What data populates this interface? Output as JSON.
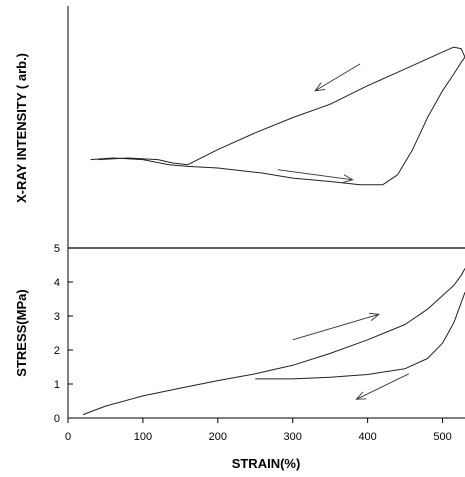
{
  "chart_data": [
    {
      "type": "line",
      "title": "",
      "ylabel": "X-RAY INTENSITY ( arb.)",
      "xlabel": "",
      "xlim": [
        0,
        530
      ],
      "ylim": [
        0,
        1
      ],
      "y_ticks_shown": false,
      "grid": false,
      "series": [
        {
          "x": [
            30,
            60,
            100,
            135,
            160,
            200,
            260,
            300,
            350,
            390,
            420,
            440,
            460,
            480,
            500,
            515,
            525,
            530,
            525,
            515,
            500,
            470,
            440,
            400,
            350,
            300,
            250,
            200,
            160,
            140,
            120,
            80,
            40
          ],
          "y": [
            0.27,
            0.28,
            0.27,
            0.24,
            0.23,
            0.22,
            0.19,
            0.16,
            0.14,
            0.12,
            0.12,
            0.18,
            0.33,
            0.52,
            0.68,
            0.78,
            0.85,
            0.88,
            0.93,
            0.94,
            0.91,
            0.85,
            0.79,
            0.71,
            0.6,
            0.52,
            0.43,
            0.33,
            0.24,
            0.25,
            0.27,
            0.28,
            0.27
          ]
        }
      ],
      "annotations": [
        {
          "kind": "arrow",
          "direction": "left",
          "x_from": 390,
          "y_from": 0.84,
          "x_to": 330,
          "y_to": 0.68
        },
        {
          "kind": "arrow",
          "direction": "right",
          "x_from": 280,
          "y_from": 0.21,
          "x_to": 380,
          "y_to": 0.15
        }
      ]
    },
    {
      "type": "line",
      "title": "",
      "ylabel": "STRESS(MPa)",
      "xlabel": "STRAIN(%)",
      "xlim": [
        0,
        530
      ],
      "ylim": [
        0,
        5
      ],
      "x_ticks": [
        0,
        100,
        200,
        300,
        400,
        500
      ],
      "y_ticks": [
        0,
        1,
        2,
        3,
        4,
        5
      ],
      "grid": false,
      "series": [
        {
          "x": [
            20,
            50,
            100,
            150,
            200,
            250,
            300,
            350,
            400,
            450,
            480,
            500,
            515,
            525,
            530
          ],
          "y": [
            0.1,
            0.35,
            0.65,
            0.88,
            1.1,
            1.3,
            1.55,
            1.9,
            2.3,
            2.75,
            3.2,
            3.6,
            3.9,
            4.2,
            4.4
          ]
        },
        {
          "x": [
            250,
            300,
            350,
            400,
            450,
            480,
            500,
            515,
            525,
            530
          ],
          "y": [
            1.15,
            1.15,
            1.2,
            1.28,
            1.45,
            1.75,
            2.2,
            2.8,
            3.4,
            3.7
          ]
        }
      ],
      "annotations": [
        {
          "kind": "arrow",
          "direction": "right",
          "x_from": 300,
          "y_from": 2.3,
          "x_to": 415,
          "y_to": 3.05
        },
        {
          "kind": "arrow",
          "direction": "left",
          "x_from": 455,
          "y_from": 1.3,
          "x_to": 385,
          "y_to": 0.55
        }
      ]
    }
  ]
}
